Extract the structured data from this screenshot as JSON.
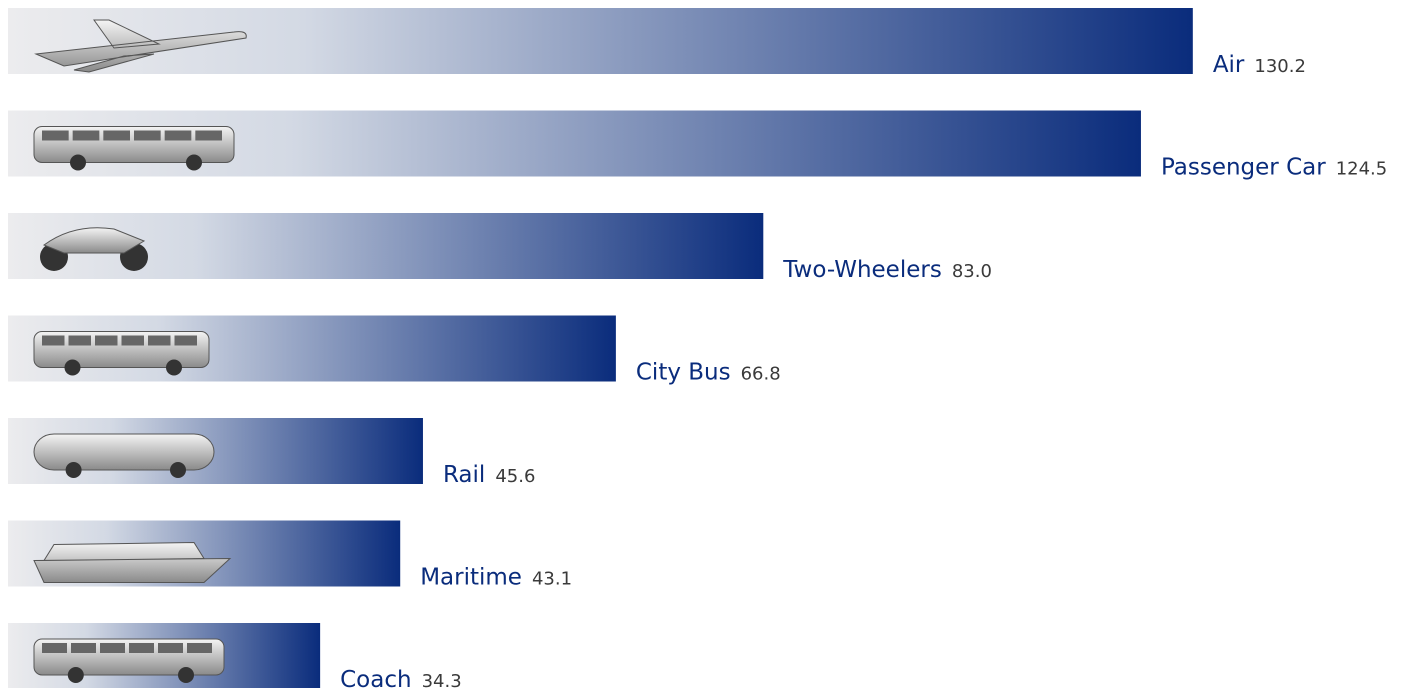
{
  "chart_data": {
    "type": "bar",
    "orientation": "horizontal",
    "categories": [
      "Air",
      "Passenger Car",
      "Two-Wheelers",
      "City Bus",
      "Rail",
      "Maritime",
      "Coach"
    ],
    "values": [
      130.2,
      124.5,
      83.0,
      66.8,
      45.6,
      43.1,
      34.3
    ],
    "value_labels": [
      "130.2",
      "124.5",
      "83.0",
      "66.8",
      "45.6",
      "43.1",
      "34.3"
    ],
    "color": "#0a2c7c"
  }
}
